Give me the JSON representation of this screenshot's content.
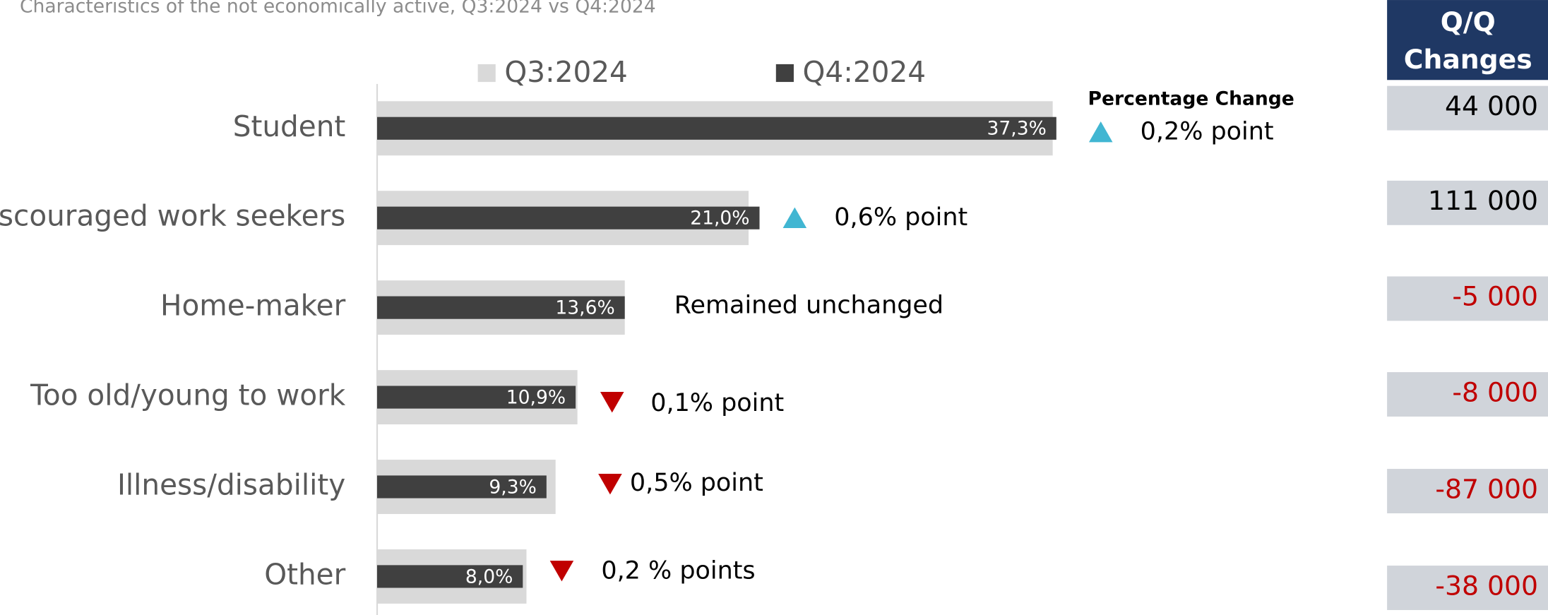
{
  "chart_data": {
    "type": "bar",
    "orientation": "horizontal",
    "title": "Characteristics of the not economically active, Q3:2024 vs Q4:2024",
    "categories": [
      "Student",
      "Discouraged work seekers",
      "Home-maker",
      "Too old/young to work",
      "Illness/disability",
      "Other"
    ],
    "series": [
      {
        "name": "Q3:2024",
        "color": "#d9d9d9",
        "values": [
          37.1,
          20.4,
          13.6,
          11.0,
          9.8,
          8.2
        ]
      },
      {
        "name": "Q4:2024",
        "color": "#404040",
        "values": [
          37.3,
          21.0,
          13.6,
          10.9,
          9.3,
          8.0
        ],
        "value_labels": [
          "37,3%",
          "21,0%",
          "13,6%",
          "10,9%",
          "9,3%",
          "8,0%"
        ]
      }
    ],
    "legend": "top",
    "annotation_title": "Percentage Change",
    "annotations": [
      {
        "direction": "up",
        "text": "0,2% point"
      },
      {
        "direction": "up",
        "text": "0,6% point"
      },
      {
        "direction": null,
        "text": "Remained unchanged"
      },
      {
        "direction": "down",
        "text": "0,1% point"
      },
      {
        "direction": "down",
        "text": "0,5% point"
      },
      {
        "direction": "down",
        "text": "0,2 % points"
      }
    ]
  },
  "table": {
    "header": [
      "Q/Q",
      "Changes"
    ],
    "rows": [
      "44 000",
      "111 000",
      "-5 000",
      "-8 000",
      "-87 000",
      "-38 000"
    ]
  }
}
